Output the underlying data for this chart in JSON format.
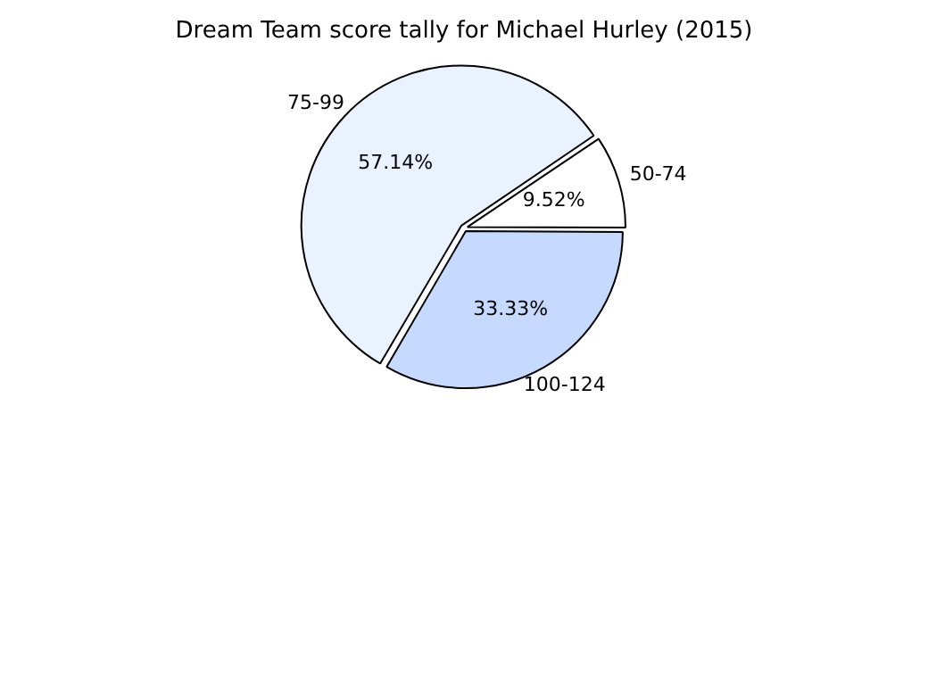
{
  "chart_data": {
    "type": "pie",
    "title": "Dream Team score tally for Michael Hurley (2015)",
    "categories": [
      "50-74",
      "100-124",
      "75-99"
    ],
    "values": [
      9.52,
      33.33,
      57.14
    ],
    "value_labels": [
      "9.52%",
      "33.33%",
      "57.14%"
    ],
    "colors": [
      "#ffffff",
      "#c6d9ff",
      "#eaf1ff"
    ],
    "legend": false
  }
}
